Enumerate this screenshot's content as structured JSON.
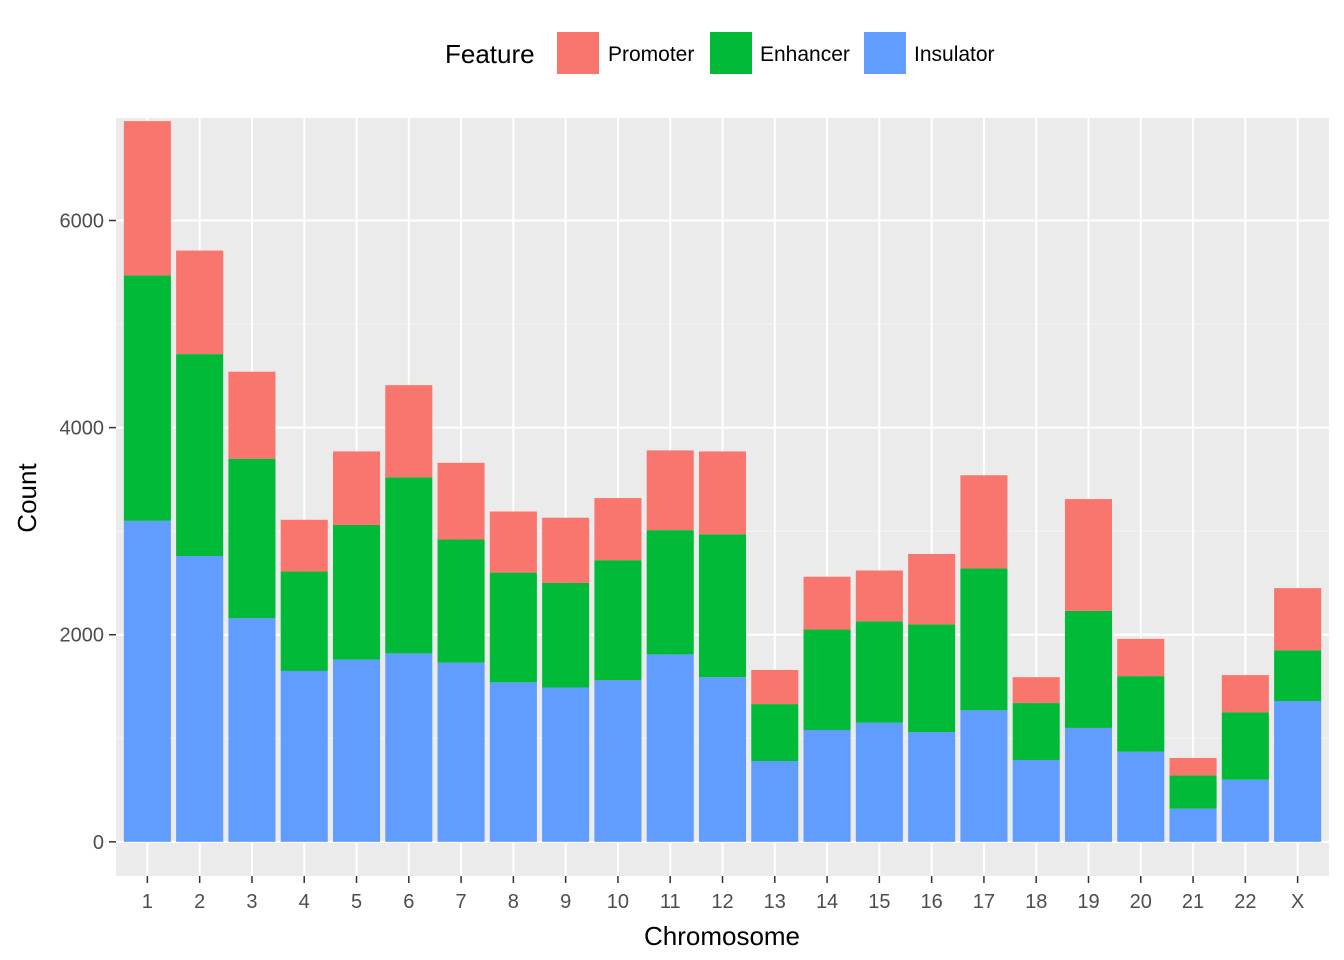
{
  "chart_data": {
    "type": "bar",
    "stacked": true,
    "title": "",
    "xlabel": "Chromosome",
    "ylabel": "Count",
    "categories": [
      "1",
      "2",
      "3",
      "4",
      "5",
      "6",
      "7",
      "8",
      "9",
      "10",
      "11",
      "12",
      "13",
      "14",
      "15",
      "16",
      "17",
      "18",
      "19",
      "20",
      "21",
      "22",
      "X"
    ],
    "ylim": [
      -330,
      6990
    ],
    "yticks": [
      0,
      2000,
      4000,
      6000
    ],
    "ytick_labels": [
      "0",
      "2000",
      "4000",
      "6000"
    ],
    "grid": true,
    "legend": {
      "title": "Feature",
      "position": "top",
      "entries": [
        "Promoter",
        "Enhancer",
        "Insulator"
      ]
    },
    "series": [
      {
        "name": "Insulator",
        "color": "#619CFF",
        "values": [
          3100,
          2760,
          2160,
          1650,
          1760,
          1820,
          1730,
          1540,
          1490,
          1560,
          1810,
          1590,
          780,
          1080,
          1150,
          1060,
          1270,
          790,
          1100,
          870,
          320,
          600,
          1360
        ]
      },
      {
        "name": "Enhancer",
        "color": "#00BA38",
        "values": [
          2370,
          1950,
          1540,
          960,
          1300,
          1700,
          1190,
          1060,
          1010,
          1160,
          1200,
          1380,
          550,
          970,
          980,
          1040,
          1370,
          550,
          1130,
          730,
          320,
          650,
          490
        ]
      },
      {
        "name": "Promoter",
        "color": "#F8766D",
        "values": [
          1490,
          1000,
          840,
          500,
          710,
          890,
          740,
          590,
          630,
          600,
          770,
          800,
          330,
          510,
          490,
          680,
          900,
          250,
          1080,
          360,
          170,
          360,
          600
        ]
      }
    ]
  }
}
